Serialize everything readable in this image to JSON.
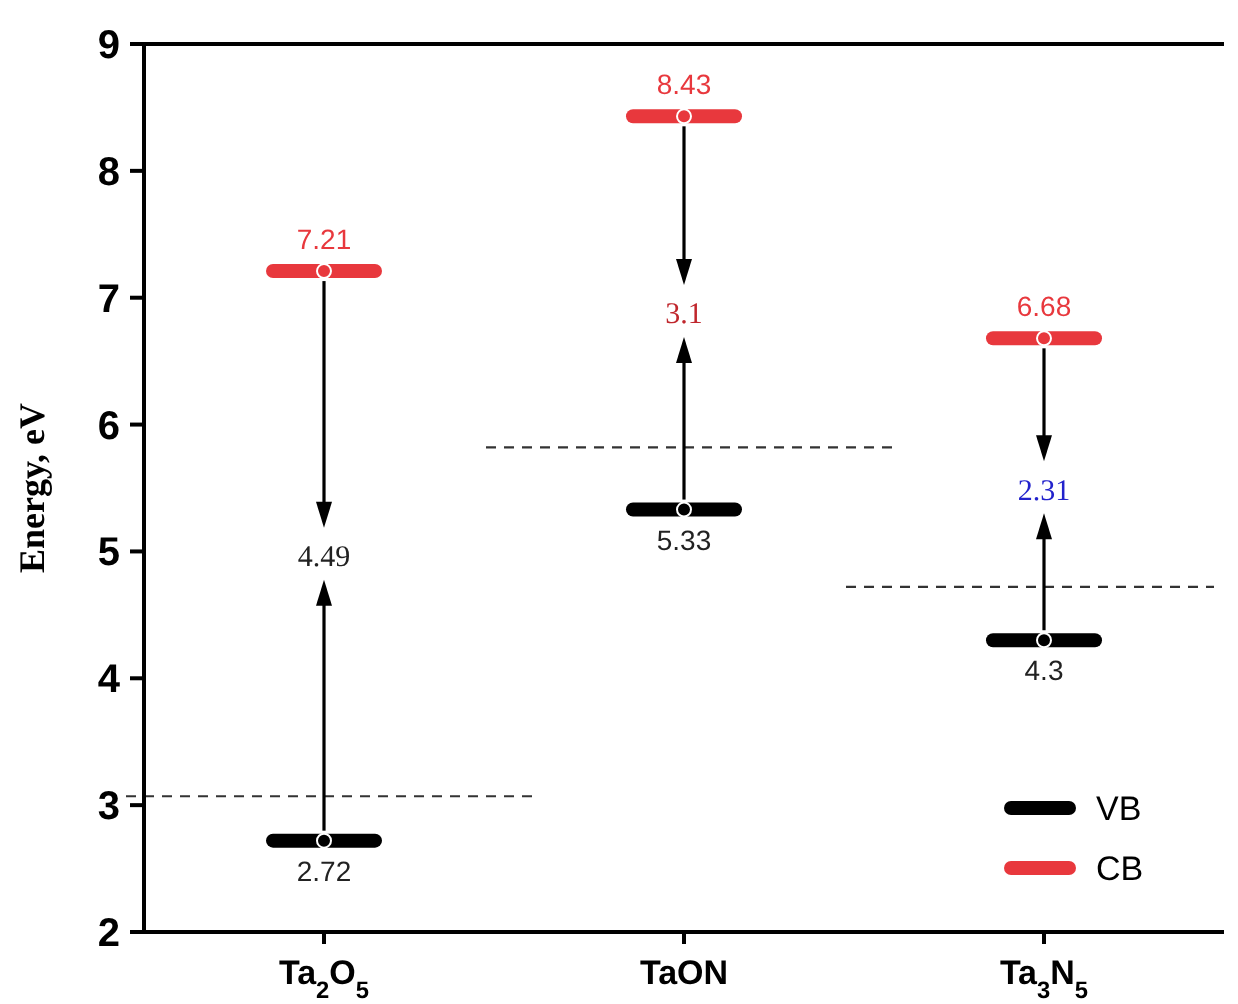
{
  "chart_data": {
    "type": "scatter",
    "ylabel": "Energy, eV",
    "categories": [
      "Ta$_{2}$O$_{5}$",
      "TaON",
      "Ta$_{3}$N$_{5}$"
    ],
    "series": [
      {
        "name": "VB",
        "color": "#000000",
        "values": [
          2.72,
          5.33,
          4.3
        ]
      },
      {
        "name": "CB",
        "color": "#e8383d",
        "values": [
          7.21,
          8.43,
          6.68
        ]
      }
    ],
    "ylim": [
      2,
      9
    ],
    "yticks": [
      2,
      3,
      4,
      5,
      6,
      7,
      8,
      9
    ],
    "data_labels": true,
    "legend": "bottom right",
    "ref_lines": [
      {
        "axis": "y",
        "value": 3.07,
        "line_style": "dashed",
        "color": "#333333"
      },
      {
        "axis": "y",
        "value": 5.82,
        "line_style": "dashed",
        "color": "#333333"
      },
      {
        "axis": "y",
        "value": 4.72,
        "line_style": "dashed",
        "color": "#333333"
      }
    ],
    "annotations": [
      {
        "text": "4.49",
        "x": "Ta$_{2}$O$_{5}$",
        "y": 2.72
      },
      {
        "text": "3.1",
        "x": "TaON",
        "y": 5.33
      },
      {
        "text": "2.31",
        "x": "Ta$_{3}$N$_{5}$",
        "y": 4.3
      }
    ]
  }
}
